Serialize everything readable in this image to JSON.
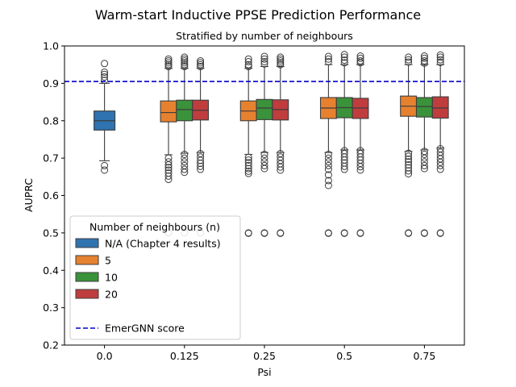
{
  "chart_data": {
    "type": "box",
    "title": "Warm-start Inductive PPSE Prediction Performance",
    "subtitle": "Stratified by number of neighbours",
    "xlabel": "Psi",
    "ylabel": "AUPRC",
    "categories": [
      "0.0",
      "0.125",
      "0.25",
      "0.5",
      "0.75"
    ],
    "ylim": [
      0.2,
      1.0
    ],
    "yticks": [
      "0.2",
      "0.3",
      "0.4",
      "0.5",
      "0.6",
      "0.7",
      "0.8",
      "0.9",
      "1.0"
    ],
    "legend": {
      "title": "Number of neighbours (n)",
      "placement": "lower-left",
      "reference_label": "EmerGNN score"
    },
    "reference_line": {
      "value": 0.905,
      "color": "#0000cc",
      "style": "dashed"
    },
    "series": [
      {
        "name": "N/A (Chapter 4 results)",
        "color": "#2f73b0",
        "boxes": [
          {
            "category": "0.0",
            "whislo": 0.693,
            "q1": 0.775,
            "med": 0.8,
            "q3": 0.826,
            "whishi": 0.9,
            "outliers": [
              0.953,
              0.93,
              0.924,
              0.917,
              0.908,
              0.68,
              0.668
            ]
          }
        ]
      },
      {
        "name": "5",
        "color": "#e6812f",
        "boxes": [
          {
            "category": "0.125",
            "whislo": 0.709,
            "q1": 0.797,
            "med": 0.822,
            "q3": 0.853,
            "whishi": 0.94,
            "outliers": [
              0.965,
              0.96,
              0.955,
              0.95,
              0.945,
              0.7,
              0.69,
              0.682,
              0.675,
              0.668,
              0.66,
              0.652,
              0.643,
              0.5
            ]
          },
          {
            "category": "0.25",
            "whislo": 0.71,
            "q1": 0.8,
            "med": 0.826,
            "q3": 0.853,
            "whishi": 0.94,
            "outliers": [
              0.965,
              0.958,
              0.95,
              0.945,
              0.702,
              0.695,
              0.688,
              0.68,
              0.672,
              0.665,
              0.659,
              0.5,
              0.499
            ]
          },
          {
            "category": "0.5",
            "whislo": 0.715,
            "q1": 0.806,
            "med": 0.834,
            "q3": 0.862,
            "whishi": 0.95,
            "outliers": [
              0.972,
              0.965,
              0.958,
              0.71,
              0.7,
              0.69,
              0.68,
              0.67,
              0.655,
              0.64,
              0.627,
              0.5,
              0.499
            ]
          },
          {
            "category": "0.75",
            "whislo": 0.718,
            "q1": 0.812,
            "med": 0.839,
            "q3": 0.866,
            "whishi": 0.95,
            "outliers": [
              0.97,
              0.963,
              0.957,
              0.713,
              0.705,
              0.697,
              0.69,
              0.682,
              0.674,
              0.666,
              0.658,
              0.5,
              0.499
            ]
          }
        ]
      },
      {
        "name": "10",
        "color": "#3a923a",
        "boxes": [
          {
            "category": "0.125",
            "whislo": 0.713,
            "q1": 0.8,
            "med": 0.83,
            "q3": 0.855,
            "whishi": 0.94,
            "outliers": [
              0.97,
              0.965,
              0.96,
              0.955,
              0.95,
              0.945,
              0.71,
              0.7,
              0.69,
              0.68,
              0.67,
              0.662,
              0.5
            ]
          },
          {
            "category": "0.25",
            "whislo": 0.715,
            "q1": 0.803,
            "med": 0.834,
            "q3": 0.857,
            "whishi": 0.945,
            "outliers": [
              0.972,
              0.965,
              0.958,
              0.952,
              0.71,
              0.7,
              0.69,
              0.68,
              0.672,
              0.5,
              0.499
            ]
          },
          {
            "category": "0.5",
            "whislo": 0.722,
            "q1": 0.808,
            "med": 0.835,
            "q3": 0.862,
            "whishi": 0.95,
            "outliers": [
              0.977,
              0.97,
              0.962,
              0.955,
              0.72,
              0.712,
              0.703,
              0.695,
              0.687,
              0.678,
              0.67,
              0.5,
              0.499
            ]
          },
          {
            "category": "0.75",
            "whislo": 0.722,
            "q1": 0.81,
            "med": 0.838,
            "q3": 0.862,
            "whishi": 0.95,
            "outliers": [
              0.973,
              0.967,
              0.96,
              0.954,
              0.718,
              0.71,
              0.7,
              0.69,
              0.68,
              0.672,
              0.5,
              0.499
            ]
          }
        ]
      },
      {
        "name": "20",
        "color": "#c03d3e",
        "boxes": [
          {
            "category": "0.125",
            "whislo": 0.715,
            "q1": 0.802,
            "med": 0.828,
            "q3": 0.855,
            "whishi": 0.94,
            "outliers": [
              0.96,
              0.955,
              0.95,
              0.945,
              0.712,
              0.703,
              0.694,
              0.686,
              0.678,
              0.67,
              0.5
            ]
          },
          {
            "category": "0.25",
            "whislo": 0.715,
            "q1": 0.802,
            "med": 0.83,
            "q3": 0.856,
            "whishi": 0.945,
            "outliers": [
              0.97,
              0.965,
              0.96,
              0.955,
              0.95,
              0.712,
              0.703,
              0.694,
              0.685,
              0.676,
              0.668,
              0.5,
              0.499
            ]
          },
          {
            "category": "0.5",
            "whislo": 0.722,
            "q1": 0.806,
            "med": 0.834,
            "q3": 0.86,
            "whishi": 0.95,
            "outliers": [
              0.973,
              0.967,
              0.96,
              0.955,
              0.72,
              0.712,
              0.703,
              0.695,
              0.686,
              0.677,
              0.668,
              0.5,
              0.499
            ]
          },
          {
            "category": "0.75",
            "whislo": 0.727,
            "q1": 0.807,
            "med": 0.834,
            "q3": 0.864,
            "whishi": 0.95,
            "outliers": [
              0.976,
              0.97,
              0.963,
              0.956,
              0.725,
              0.716,
              0.707,
              0.698,
              0.689,
              0.68,
              0.67,
              0.5,
              0.499
            ]
          }
        ]
      }
    ]
  }
}
